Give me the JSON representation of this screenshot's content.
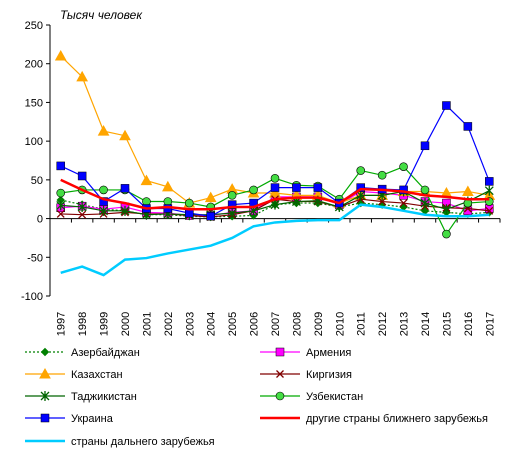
{
  "chart_data": {
    "type": "line",
    "ylabel": "Тысяч человек",
    "ylim": [
      -100,
      250
    ],
    "yticks": [
      -100,
      -50,
      0,
      50,
      100,
      150,
      200,
      250
    ],
    "x": [
      "1997",
      "1998",
      "1999",
      "2000",
      "2001",
      "2002",
      "2003",
      "2004",
      "2005",
      "2006",
      "2007",
      "2008",
      "2009",
      "2010",
      "2011",
      "2012",
      "2013",
      "2014",
      "2015",
      "2016",
      "2017"
    ],
    "grid": false,
    "legend_position": "bottom",
    "series": [
      {
        "name": "Азербайджан",
        "color": "#008000",
        "marker": "diamond",
        "dash": "dotted",
        "values": [
          24,
          18,
          12,
          10,
          5,
          5,
          3,
          2,
          3,
          4,
          18,
          20,
          20,
          15,
          20,
          18,
          15,
          10,
          8,
          6,
          8
        ]
      },
      {
        "name": "Армения",
        "color": "#ff00ff",
        "marker": "square",
        "dash": "solid",
        "values": [
          14,
          16,
          12,
          15,
          8,
          7,
          4,
          4,
          8,
          10,
          28,
          28,
          28,
          18,
          35,
          33,
          30,
          22,
          20,
          10,
          13
        ]
      },
      {
        "name": "Казахстан",
        "color": "#ffa500",
        "marker": "triangle",
        "dash": "solid",
        "values": [
          210,
          183,
          113,
          107,
          49,
          41,
          20,
          27,
          38,
          33,
          33,
          30,
          30,
          20,
          30,
          30,
          35,
          35,
          33,
          35,
          30
        ]
      },
      {
        "name": "Киргизия",
        "color": "#800000",
        "marker": "x",
        "dash": "solid",
        "values": [
          6,
          5,
          6,
          8,
          6,
          6,
          4,
          2,
          5,
          10,
          25,
          22,
          22,
          15,
          25,
          22,
          20,
          16,
          14,
          13,
          10
        ]
      },
      {
        "name": "Таджикистан",
        "color": "#006400",
        "marker": "star",
        "dash": "solid",
        "values": [
          17,
          15,
          10,
          10,
          5,
          6,
          5,
          5,
          7,
          10,
          18,
          22,
          23,
          15,
          30,
          30,
          35,
          20,
          12,
          22,
          36
        ]
      },
      {
        "name": "Узбекистан",
        "color": "#00aa00",
        "marker": "circle",
        "dash": "solid",
        "values": [
          33,
          37,
          37,
          37,
          22,
          22,
          20,
          15,
          30,
          37,
          52,
          43,
          42,
          25,
          62,
          56,
          67,
          37,
          -20,
          20,
          22
        ]
      },
      {
        "name": "Украина",
        "color": "#0000ff",
        "marker": "square",
        "dash": "solid",
        "values": [
          68,
          55,
          22,
          39,
          13,
          13,
          7,
          3,
          18,
          20,
          40,
          40,
          40,
          20,
          40,
          38,
          37,
          94,
          146,
          119,
          48
        ]
      },
      {
        "name": "другие страны ближнего зарубежья",
        "color": "#ff0000",
        "marker": "none",
        "dash": "solid",
        "width": 2.5,
        "values": [
          50,
          37,
          25,
          20,
          13,
          15,
          12,
          12,
          15,
          15,
          25,
          27,
          27,
          20,
          38,
          37,
          35,
          30,
          28,
          25,
          25
        ]
      },
      {
        "name": "страны дальнего зарубежья",
        "color": "#00ccff",
        "marker": "none",
        "dash": "solid",
        "width": 2.5,
        "values": [
          -70,
          -62,
          -73,
          -53,
          -51,
          -45,
          -40,
          -35,
          -25,
          -10,
          -5,
          -3,
          -2,
          -2,
          18,
          15,
          10,
          5,
          3,
          3,
          5
        ]
      }
    ]
  }
}
